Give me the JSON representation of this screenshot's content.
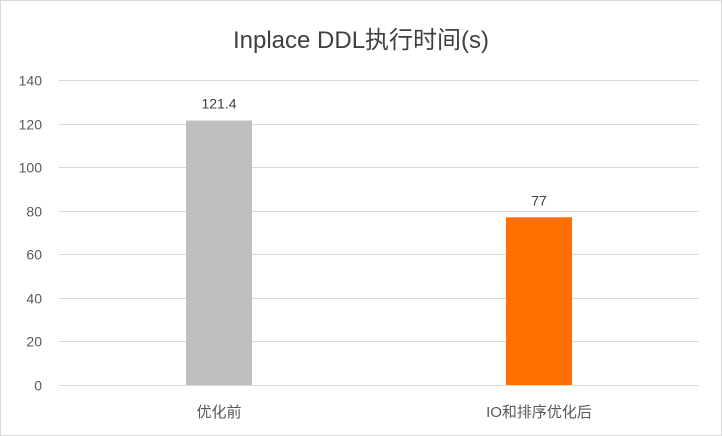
{
  "chart_data": {
    "type": "bar",
    "title": "Inplace DDL执行时间(s)",
    "categories": [
      "优化前",
      "IO和排序优化后"
    ],
    "values": [
      121.4,
      77
    ],
    "value_labels": [
      "121.4",
      "77"
    ],
    "bar_colors": [
      "#bfbfbf",
      "#ff7000"
    ],
    "ylim": [
      0,
      140
    ],
    "yticks": [
      0,
      20,
      40,
      60,
      80,
      100,
      120,
      140
    ],
    "xlabel": "",
    "ylabel": "",
    "grid": true,
    "legend": false,
    "colors": {
      "grid": "#d9d9d9",
      "text": "#595959",
      "title": "#404040",
      "value_label": "#404040"
    }
  }
}
